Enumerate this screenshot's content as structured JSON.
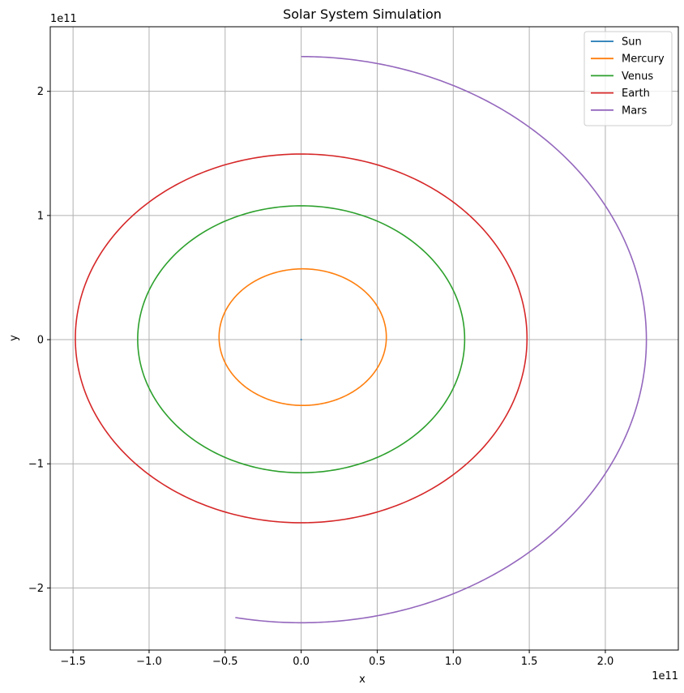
{
  "chart_data": {
    "type": "line",
    "title": "Solar System Simulation",
    "xlabel": "x",
    "ylabel": "y",
    "x_offset_text": "1e11",
    "y_offset_text": "1e11",
    "xlim": [
      -1.65,
      2.48
    ],
    "ylim": [
      -2.5,
      2.52
    ],
    "xticks": [
      -1.5,
      -1.0,
      -0.5,
      0.0,
      0.5,
      1.0,
      1.5,
      2.0
    ],
    "xtick_labels": [
      "−1.5",
      "−1.0",
      "−0.5",
      "0.0",
      "0.5",
      "1.0",
      "1.5",
      "2.0"
    ],
    "yticks": [
      -2,
      -1,
      0,
      1,
      2
    ],
    "ytick_labels": [
      "−2",
      "−1",
      "0",
      "1",
      "2"
    ],
    "grid": true,
    "legend_position": "top-right",
    "series": [
      {
        "name": "Sun",
        "color": "#1f77b4",
        "kind": "point",
        "x": [
          0
        ],
        "y": [
          0
        ]
      },
      {
        "name": "Mercury",
        "color": "#ff7f0e",
        "kind": "orbit",
        "cx": 0.01,
        "cy": 0.02,
        "rx": 0.55,
        "ry": 0.55,
        "start_deg": 0,
        "end_deg": 360
      },
      {
        "name": "Venus",
        "color": "#2ca02c",
        "kind": "orbit",
        "cx": 0.0,
        "cy": 0.003,
        "rx": 1.075,
        "ry": 1.075,
        "start_deg": 0,
        "end_deg": 360
      },
      {
        "name": "Earth",
        "color": "#d62728",
        "kind": "orbit",
        "cx": 0.0,
        "cy": 0.01,
        "rx": 1.485,
        "ry": 1.485,
        "start_deg": -5,
        "end_deg": 360
      },
      {
        "name": "Mars",
        "color": "#9467bd",
        "kind": "orbit",
        "cx": 0.0,
        "cy": 0.0,
        "rx": 2.27,
        "ry": 2.28,
        "start_deg": -101,
        "end_deg": 90
      }
    ]
  }
}
